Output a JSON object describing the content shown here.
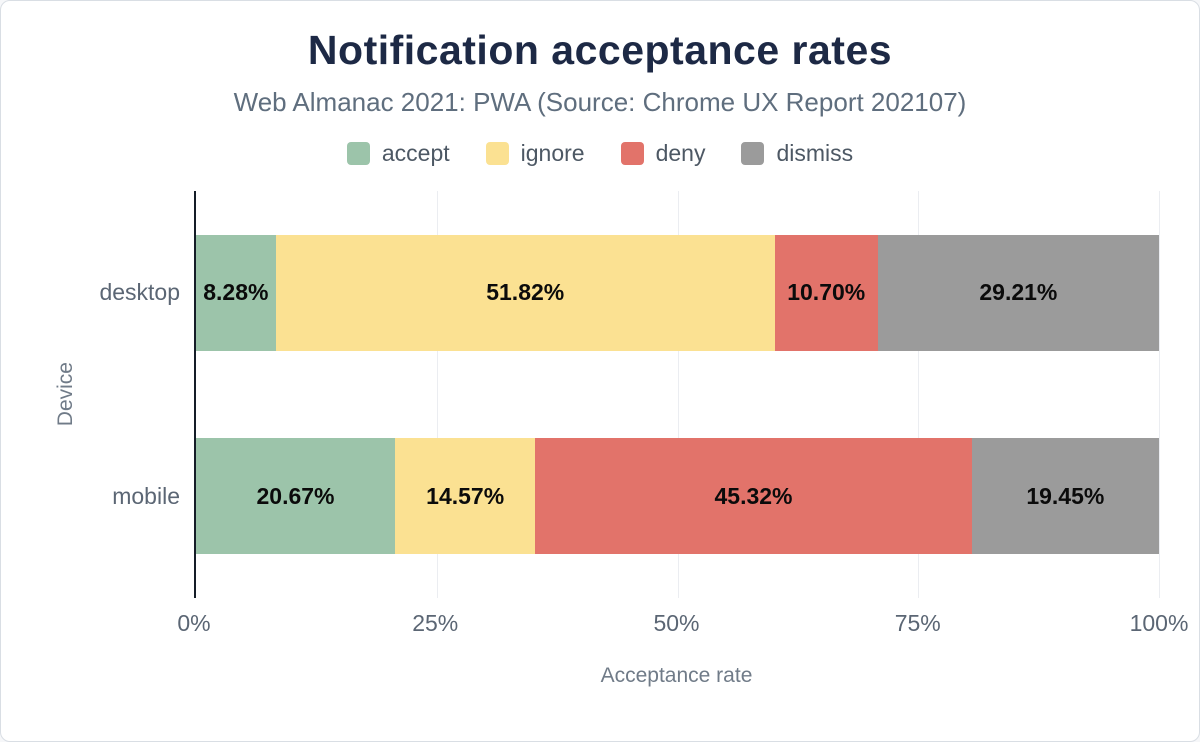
{
  "figure": {
    "title": "Notification acceptance rates",
    "subtitle": "Web Almanac 2021: PWA (Source: Chrome UX Report 202107)",
    "y_axis_label": "Device",
    "x_axis_label": "Acceptance rate"
  },
  "chart_data": {
    "type": "bar",
    "orientation": "horizontal",
    "stacked": true,
    "title": "Notification acceptance rates",
    "subtitle": "Web Almanac 2021: PWA (Source: Chrome UX Report 202107)",
    "xlabel": "Acceptance rate",
    "ylabel": "Device",
    "xlim": [
      0,
      100
    ],
    "grid": true,
    "legend_position": "top",
    "categories": [
      "desktop",
      "mobile"
    ],
    "series": [
      {
        "name": "accept",
        "color": "#9cc4aa",
        "values": [
          8.28,
          20.67
        ]
      },
      {
        "name": "ignore",
        "color": "#fbe192",
        "values": [
          51.82,
          14.57
        ]
      },
      {
        "name": "deny",
        "color": "#e2736a",
        "values": [
          10.7,
          45.32
        ]
      },
      {
        "name": "dismiss",
        "color": "#9b9b9b",
        "values": [
          29.21,
          19.45
        ]
      }
    ],
    "bar_labels": [
      [
        "8.28%",
        "51.82%",
        "10.70%",
        "29.21%"
      ],
      [
        "20.67%",
        "14.57%",
        "45.32%",
        "19.45%"
      ]
    ],
    "x_ticks": [
      {
        "label": "0%",
        "value": 0
      },
      {
        "label": "25%",
        "value": 25
      },
      {
        "label": "50%",
        "value": 50
      },
      {
        "label": "75%",
        "value": 75
      },
      {
        "label": "100%",
        "value": 100
      }
    ]
  }
}
